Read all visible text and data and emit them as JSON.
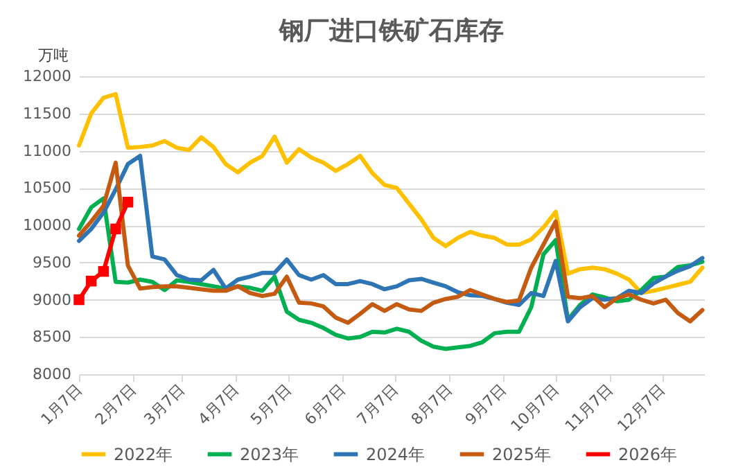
{
  "chart_data": {
    "type": "line",
    "title": "钢厂进口铁矿石库存",
    "ylabel": "万吨",
    "x": [
      "--01-07",
      "--01-14",
      "--01-21",
      "--01-28",
      "--02-04",
      "--02-11",
      "--02-18",
      "--02-25",
      "--03-04",
      "--03-11",
      "--03-18",
      "--03-25",
      "--04-01",
      "--04-08",
      "--04-15",
      "--04-22",
      "--04-29",
      "--05-06",
      "--05-13",
      "--05-20",
      "--05-27",
      "--06-03",
      "--06-10",
      "--06-17",
      "--06-24",
      "--07-01",
      "--07-08",
      "--07-15",
      "--07-22",
      "--07-29",
      "--08-05",
      "--08-12",
      "--08-19",
      "--08-26",
      "--09-02",
      "--09-09",
      "--09-16",
      "--09-23",
      "--09-30",
      "--10-07",
      "--10-14",
      "--10-21",
      "--10-28",
      "--11-04",
      "--11-11",
      "--11-18",
      "--11-25",
      "--12-02",
      "--12-09",
      "--12-16",
      "--12-23",
      "--12-30"
    ],
    "xlim": [
      "--01-07",
      "--12-31"
    ],
    "xticks": [
      {
        "value": "--01-07",
        "label": "1月7日"
      },
      {
        "value": "--02-07",
        "label": "2月7日"
      },
      {
        "value": "--03-07",
        "label": "3月7日"
      },
      {
        "value": "--04-07",
        "label": "4月7日"
      },
      {
        "value": "--05-07",
        "label": "5月7日"
      },
      {
        "value": "--06-07",
        "label": "6月7日"
      },
      {
        "value": "--07-07",
        "label": "7月7日"
      },
      {
        "value": "--08-07",
        "label": "8月7日"
      },
      {
        "value": "--09-07",
        "label": "9月7日"
      },
      {
        "value": "--10-07",
        "label": "10月7日"
      },
      {
        "value": "--11-07",
        "label": "11月7日"
      },
      {
        "value": "--12-07",
        "label": "12月7日"
      }
    ],
    "ylim": [
      8000,
      12000
    ],
    "yticks": [
      8000,
      8500,
      9000,
      9500,
      10000,
      10500,
      11000,
      11500,
      12000
    ],
    "grid": "y",
    "legend": "bottom",
    "line_style": "solid",
    "series": [
      {
        "name": "2022年",
        "color": "#ffc000",
        "marker": "none",
        "values": [
          11070,
          11500,
          11710,
          11760,
          11040,
          11050,
          11070,
          11130,
          11040,
          11010,
          11180,
          11050,
          10820,
          10710,
          10840,
          10930,
          11190,
          10840,
          11020,
          10910,
          10840,
          10730,
          10820,
          10930,
          10700,
          10540,
          10500,
          10290,
          10080,
          9830,
          9720,
          9830,
          9910,
          9860,
          9830,
          9740,
          9740,
          9810,
          9970,
          10180,
          9350,
          9410,
          9430,
          9410,
          9350,
          9270,
          9090,
          9120,
          9160,
          9200,
          9240,
          9430
        ]
      },
      {
        "name": "2023年",
        "color": "#00b050",
        "marker": "none",
        "values": [
          9950,
          10240,
          10360,
          9240,
          9230,
          9270,
          9240,
          9130,
          9260,
          9240,
          9210,
          9180,
          9150,
          9180,
          9160,
          9120,
          9310,
          8840,
          8730,
          8690,
          8620,
          8530,
          8480,
          8500,
          8570,
          8560,
          8610,
          8570,
          8450,
          8370,
          8340,
          8360,
          8380,
          8430,
          8550,
          8570,
          8570,
          8900,
          9610,
          9800,
          8730,
          8930,
          9070,
          9030,
          8980,
          9000,
          9130,
          9290,
          9310,
          9440,
          9460,
          9510
        ]
      },
      {
        "name": "2024年",
        "color": "#2e75b6",
        "marker": "none",
        "values": [
          9790,
          9950,
          10170,
          10480,
          10820,
          10930,
          9580,
          9540,
          9330,
          9270,
          9260,
          9400,
          9150,
          9270,
          9310,
          9360,
          9360,
          9540,
          9330,
          9270,
          9330,
          9210,
          9210,
          9250,
          9210,
          9140,
          9180,
          9260,
          9280,
          9230,
          9180,
          9100,
          9060,
          9050,
          9010,
          8960,
          8930,
          9090,
          9050,
          9520,
          8710,
          8900,
          9020,
          9000,
          9020,
          9120,
          9090,
          9220,
          9310,
          9390,
          9450,
          9560
        ]
      },
      {
        "name": "2025年",
        "color": "#c55a11",
        "marker": "none",
        "values": [
          9860,
          10050,
          10260,
          10840,
          9460,
          9150,
          9170,
          9180,
          9180,
          9160,
          9140,
          9120,
          9120,
          9180,
          9090,
          9050,
          9080,
          9310,
          8960,
          8950,
          8910,
          8760,
          8690,
          8810,
          8940,
          8850,
          8940,
          8870,
          8850,
          8960,
          9010,
          9040,
          9130,
          9070,
          9010,
          8970,
          8990,
          9430,
          9740,
          10050,
          9040,
          9020,
          9050,
          8900,
          9020,
          9070,
          9000,
          8950,
          9000,
          8820,
          8710,
          8860
        ]
      },
      {
        "name": "2026年",
        "color": "#ff0000",
        "marker": "square",
        "x": [
          "--01-07",
          "--01-14",
          "--01-21",
          "--01-28",
          "--02-04"
        ],
        "values": [
          9000,
          9250,
          9380,
          9950,
          10310
        ]
      }
    ]
  }
}
